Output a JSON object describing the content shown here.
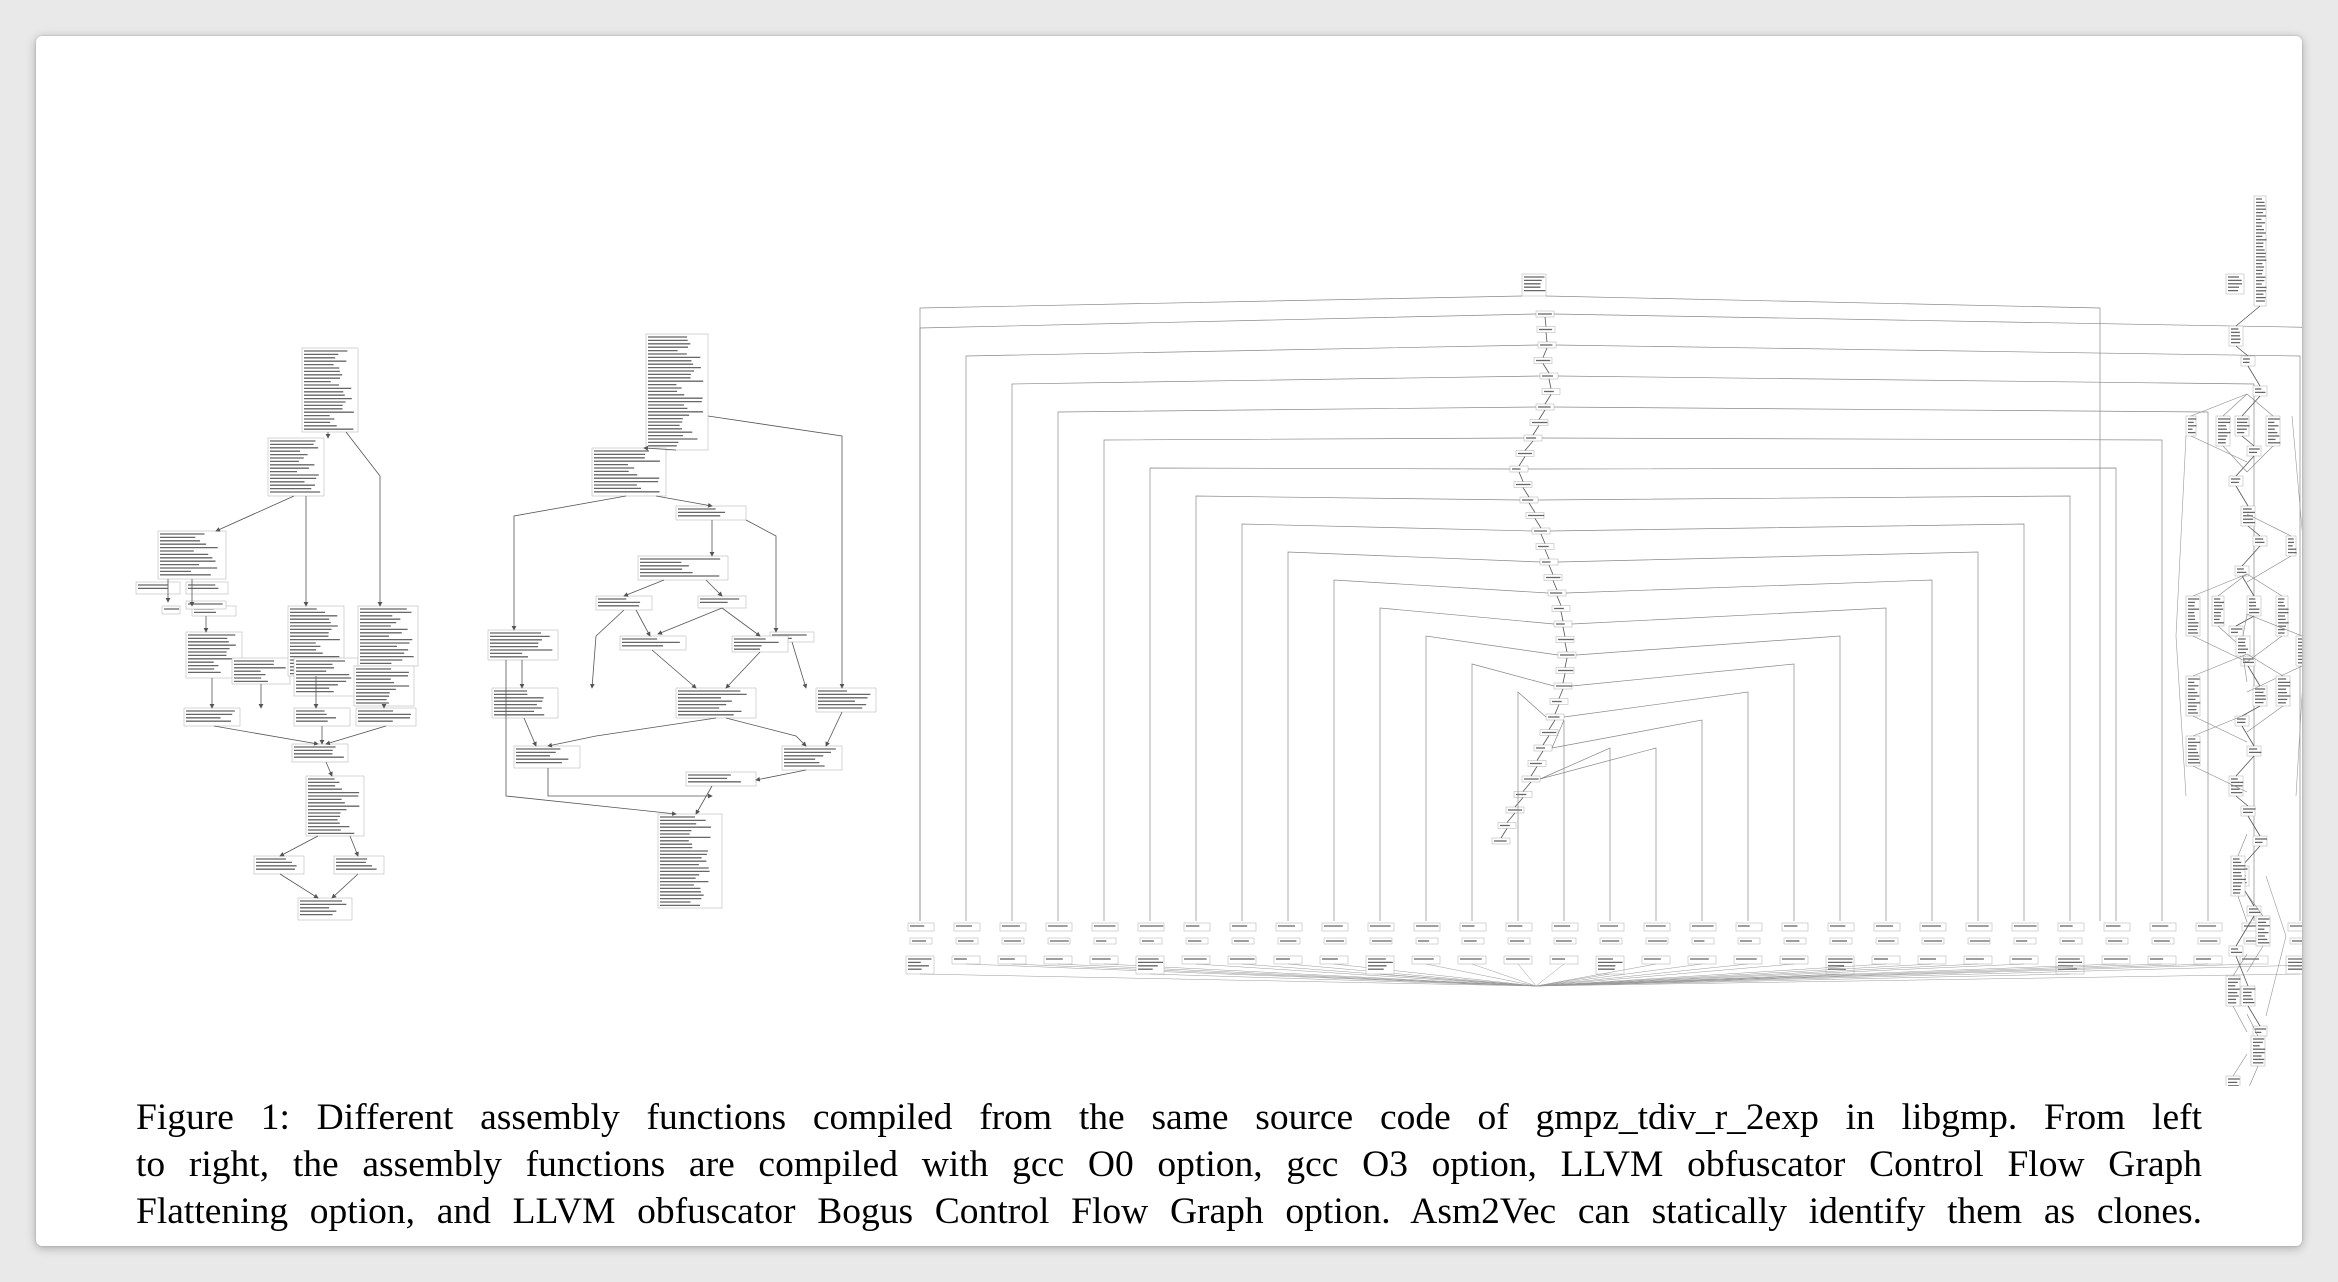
{
  "figure": {
    "panels": [
      {
        "name": "gcc O0 CFG"
      },
      {
        "name": "gcc O3 CFG"
      },
      {
        "name": "LLVM obfuscator Control Flow Graph Flattening CFG"
      },
      {
        "name": "LLVM obfuscator Bogus Control Flow Graph CFG"
      }
    ]
  },
  "caption": {
    "lines": [
      "Figure 1: Different assembly functions compiled from the same source code of gmpz_tdiv_r_2exp in libgmp. From left",
      "to right, the assembly functions are compiled with gcc O0 option, gcc O3 option, LLVM obfuscator Control Flow Graph",
      "Flattening option, and LLVM obfuscator Bogus Control Flow Graph option. Asm2Vec can statically identify them as clones."
    ]
  },
  "colors": {
    "background": "#e9e9e9",
    "card": "#ffffff",
    "edge": "#555555",
    "node_text": "#333333"
  }
}
